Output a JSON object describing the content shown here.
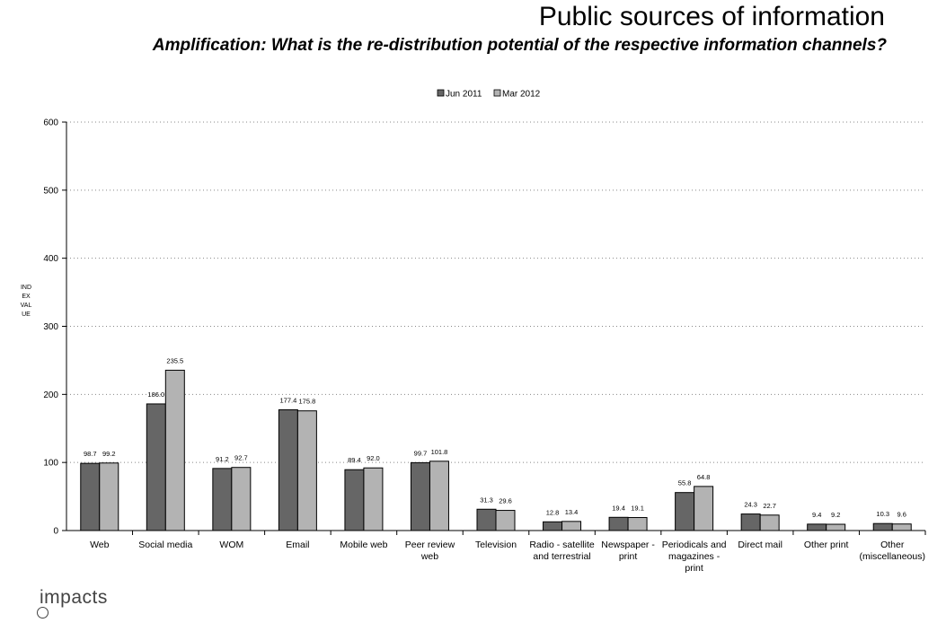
{
  "header": {
    "title": "Public sources of information",
    "subtitle": "Amplification: What is the re-distribution potential of the respective information channels?"
  },
  "logo": {
    "text": "impacts"
  },
  "chart_data": {
    "type": "bar",
    "title": "Public sources of information",
    "subtitle": "Amplification: What is the re-distribution potential of the respective information channels?",
    "ylabel": "INDEX VALUE",
    "xlabel": "",
    "ylim": [
      0,
      600
    ],
    "yticks": [
      0,
      100,
      200,
      300,
      400,
      500,
      600
    ],
    "grid": true,
    "legend_position": "top-center",
    "categories": [
      [
        "Web"
      ],
      [
        "Social media"
      ],
      [
        "WOM"
      ],
      [
        "Email"
      ],
      [
        "Mobile web"
      ],
      [
        "Peer review",
        "web"
      ],
      [
        "Television"
      ],
      [
        "Radio - satellite",
        "and terrestrial"
      ],
      [
        "Newspaper -",
        "print"
      ],
      [
        "Periodicals and",
        "magazines -",
        "print"
      ],
      [
        "Direct mail"
      ],
      [
        "Other print"
      ],
      [
        "Other",
        "(miscellaneous)"
      ]
    ],
    "series": [
      {
        "name": "Jun 2011",
        "color": "#666666",
        "values": [
          98.7,
          186.0,
          91.2,
          177.4,
          89.4,
          99.7,
          31.3,
          12.8,
          19.4,
          55.8,
          24.3,
          9.4,
          10.3
        ]
      },
      {
        "name": "Mar 2012",
        "color": "#b3b3b3",
        "values": [
          99.2,
          235.5,
          92.7,
          175.8,
          92.0,
          101.8,
          29.6,
          13.4,
          19.1,
          64.8,
          22.7,
          9.2,
          9.6
        ]
      }
    ]
  }
}
